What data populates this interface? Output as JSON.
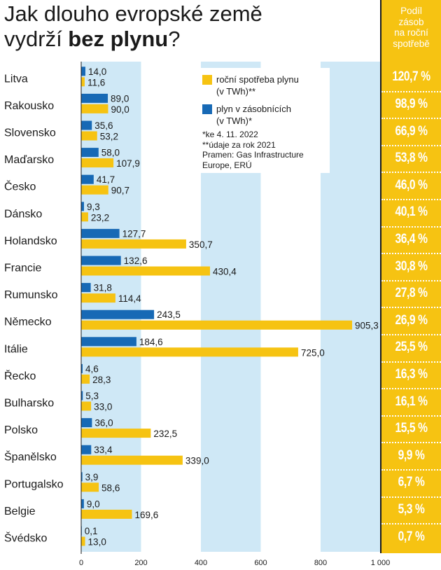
{
  "title": {
    "line1": "Jak dlouho evropské země",
    "line2_pre": "vydrží ",
    "line2_bold": "bez plynu",
    "line2_post": "?"
  },
  "side_header": [
    "Podíl",
    "zásob",
    "na roční",
    "spotřebě"
  ],
  "legend": {
    "consumption_label": [
      "roční spotřeba plynu",
      "(v TWh)**"
    ],
    "storage_label": [
      "plyn v zásobnících",
      "(v TWh)*"
    ],
    "notes": [
      "*ke 4. 11. 2022",
      "**údaje za rok 2021",
      "Pramen: Gas Infrastructure",
      "Europe, ERÚ"
    ]
  },
  "colors": {
    "storage": "#1769b5",
    "consumption": "#f6c312",
    "band": "#cfe8f6",
    "side": "#f6c312"
  },
  "chart_data": {
    "type": "bar",
    "orientation": "horizontal",
    "xlim": [
      0,
      1000
    ],
    "xticks": [
      0,
      200,
      400,
      600,
      800,
      1000
    ],
    "xtick_labels": [
      "0",
      "200",
      "400",
      "600",
      "800",
      "1 000"
    ],
    "categories": [
      "Litva",
      "Rakousko",
      "Slovensko",
      "Maďarsko",
      "Česko",
      "Dánsko",
      "Holandsko",
      "Francie",
      "Rumunsko",
      "Německo",
      "Itálie",
      "Řecko",
      "Bulharsko",
      "Polsko",
      "Španělsko",
      "Portugalsko",
      "Belgie",
      "Švédsko"
    ],
    "series": [
      {
        "name": "plyn v zásobnících (v TWh)*",
        "values": [
          14.0,
          89.0,
          35.6,
          58.0,
          41.7,
          9.3,
          127.7,
          132.6,
          31.8,
          243.5,
          184.6,
          4.6,
          5.3,
          36.0,
          33.4,
          3.9,
          9.0,
          0.1
        ],
        "labels": [
          "14,0",
          "89,0",
          "35,6",
          "58,0",
          "41,7",
          "9,3",
          "127,7",
          "132,6",
          "31,8",
          "243,5",
          "184,6",
          "4,6",
          "5,3",
          "36,0",
          "33,4",
          "3,9",
          "9,0",
          "0,1"
        ]
      },
      {
        "name": "roční spotřeba plynu (v TWh)**",
        "values": [
          11.6,
          90.0,
          53.2,
          107.9,
          90.7,
          23.2,
          350.7,
          430.4,
          114.4,
          905.3,
          725.0,
          28.3,
          33.0,
          232.5,
          339.0,
          58.6,
          169.6,
          13.0
        ],
        "labels": [
          "11,6",
          "90,0",
          "53,2",
          "107,9",
          "90,7",
          "23,2",
          "350,7",
          "430,4",
          "114,4",
          "905,3",
          "725,0",
          "28,3",
          "33,0",
          "232,5",
          "339,0",
          "58,6",
          "169,6",
          "13,0"
        ]
      }
    ],
    "share_labels": [
      "120,7 %",
      "98,9 %",
      "66,9 %",
      "53,8 %",
      "46,0 %",
      "40,1 %",
      "36,4 %",
      "30,8 %",
      "27,8 %",
      "26,9 %",
      "25,5 %",
      "16,3 %",
      "16,1 %",
      "15,5 %",
      "9,9 %",
      "6,7 %",
      "5,3 %",
      "0,7 %"
    ]
  }
}
